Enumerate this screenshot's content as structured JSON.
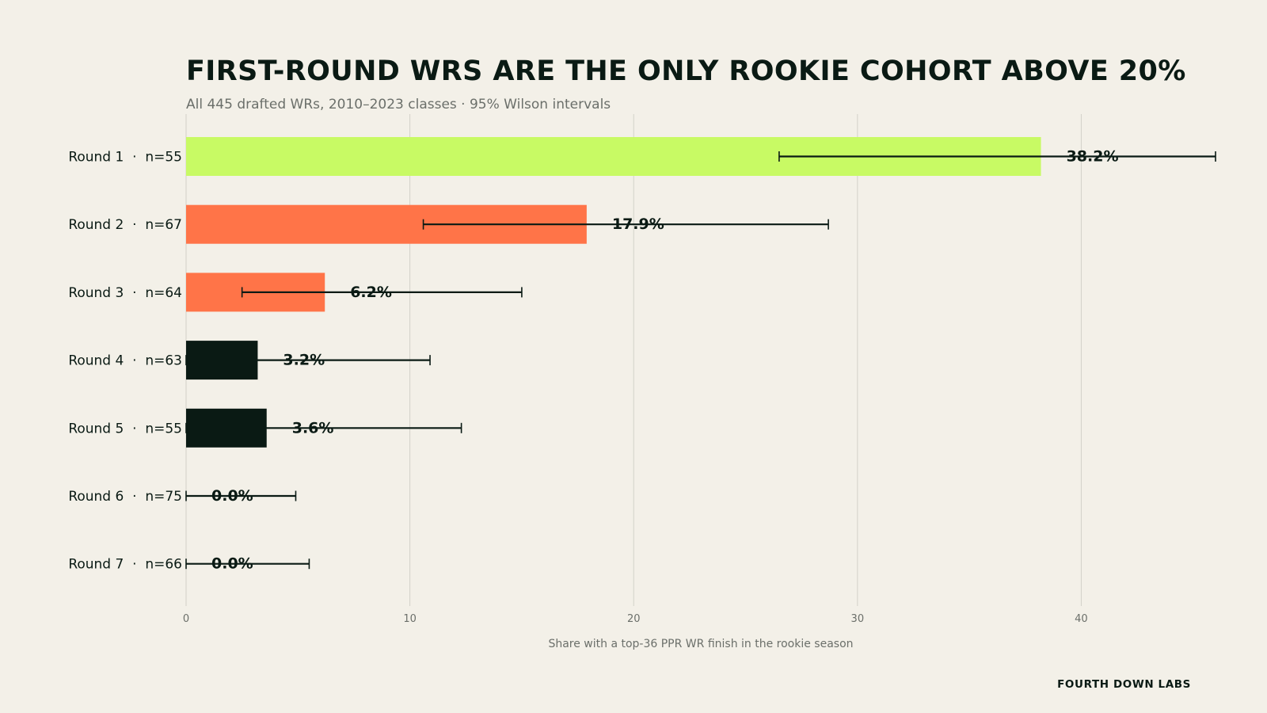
{
  "chart_data": {
    "type": "bar",
    "orientation": "horizontal",
    "title": "FIRST-ROUND WRS ARE THE ONLY ROOKIE COHORT ABOVE 20%",
    "subtitle": "All 445 drafted WRs, 2010–2023 classes · 95% Wilson intervals",
    "xlabel": "Share with a top-36 PPR WR finish in the rookie season",
    "ylabel": "",
    "xlim": [
      0,
      46
    ],
    "xticks": [
      0,
      10,
      20,
      30,
      40
    ],
    "grid": "vertical",
    "categories": [
      "Round 1  ·  n=55",
      "Round 2  ·  n=67",
      "Round 3  ·  n=64",
      "Round 4  ·  n=63",
      "Round 5  ·  n=55",
      "Round 6  ·  n=75",
      "Round 7  ·  n=66"
    ],
    "values": [
      38.2,
      17.9,
      6.2,
      3.2,
      3.6,
      0.0,
      0.0
    ],
    "value_labels": [
      "38.2%",
      "17.9%",
      "6.2%",
      "3.2%",
      "3.6%",
      "0.0%",
      "0.0%"
    ],
    "ci_low": [
      26.5,
      10.6,
      2.5,
      0.0,
      0.0,
      0.0,
      0.0
    ],
    "ci_high": [
      46.0,
      28.7,
      15.0,
      10.9,
      12.3,
      4.9,
      5.5
    ],
    "bar_colors": [
      "#c8fa64",
      "#ff7448",
      "#ff7448",
      "#0a1a14",
      "#0a1a14",
      "#0a1a14",
      "#0a1a14"
    ]
  },
  "colors": {
    "background": "#f3f0e8",
    "ink": "#0a1a14",
    "muted": "#6b6f6a",
    "grid": "#d3d1c9"
  },
  "footer": {
    "brand": "FOURTH DOWN LABS"
  }
}
